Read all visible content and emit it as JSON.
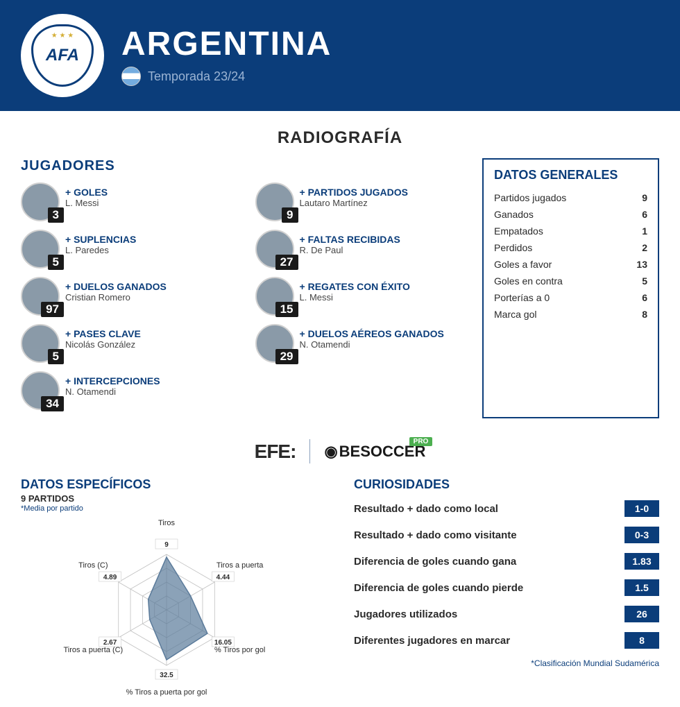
{
  "header": {
    "team_name": "ARGENTINA",
    "crest_text": "AFA",
    "season": "Temporada 23/24"
  },
  "radiografia_title": "RADIOGRAFÍA",
  "jugadores_title": "JUGADORES",
  "players_left": [
    {
      "stat": "GOLES",
      "name": "L. Messi",
      "value": "3"
    },
    {
      "stat": "SUPLENCIAS",
      "name": "L. Paredes",
      "value": "5"
    },
    {
      "stat": "DUELOS GANADOS",
      "name": "Cristian Romero",
      "value": "97"
    },
    {
      "stat": "PASES CLAVE",
      "name": "Nicolás González",
      "value": "5"
    },
    {
      "stat": "INTERCEPCIONES",
      "name": "N. Otamendi",
      "value": "34"
    }
  ],
  "players_right": [
    {
      "stat": "PARTIDOS JUGADOS",
      "name": "Lautaro Martínez",
      "value": "9"
    },
    {
      "stat": "FALTAS RECIBIDAS",
      "name": "R. De Paul",
      "value": "27"
    },
    {
      "stat": "REGATES CON ÉXITO",
      "name": "L. Messi",
      "value": "15"
    },
    {
      "stat": "DUELOS AÉREOS GANADOS",
      "name": "N. Otamendi",
      "value": "29"
    }
  ],
  "datos_generales": {
    "title": "DATOS GENERALES",
    "rows": [
      {
        "label": "Partidos jugados",
        "value": "9"
      },
      {
        "label": "Ganados",
        "value": "6"
      },
      {
        "label": "Empatados",
        "value": "1"
      },
      {
        "label": "Perdidos",
        "value": "2"
      },
      {
        "label": "Goles a favor",
        "value": "13"
      },
      {
        "label": "Goles en contra",
        "value": "5"
      },
      {
        "label": "Porterías a 0",
        "value": "6"
      },
      {
        "label": "Marca gol",
        "value": "8"
      }
    ]
  },
  "brands": {
    "efe": "EFE:",
    "besoccer": "BESOCCER",
    "pro": "PRO"
  },
  "datos_especificos": {
    "title": "DATOS ESPECÍFICOS",
    "subtitle": "9 PARTIDOS",
    "note": "*Media por partido",
    "radar": {
      "axes": [
        {
          "label": "Tiros",
          "value": "9",
          "r": 0.95
        },
        {
          "label": "Tiros a puerta",
          "value": "4.44",
          "r": 0.5
        },
        {
          "label": "% Tiros por gol",
          "value": "16.05",
          "r": 0.85
        },
        {
          "label": "% Tiros a puerta por gol",
          "value": "32.5",
          "r": 0.9
        },
        {
          "label": "Tiros a puerta (C)",
          "value": "2.67",
          "r": 0.35
        },
        {
          "label": "Tiros (C)",
          "value": "4.89",
          "r": 0.38
        }
      ],
      "fill_color": "#5a7a9a",
      "fill_opacity": 0.7,
      "grid_color": "#c0c0c0",
      "rings": 4
    }
  },
  "curiosidades": {
    "title": "CURIOSIDADES",
    "rows": [
      {
        "label": "Resultado + dado como local",
        "value": "1-0"
      },
      {
        "label": "Resultado + dado como visitante",
        "value": "0-3"
      },
      {
        "label": "Diferencia de goles cuando gana",
        "value": "1.83"
      },
      {
        "label": "Diferencia de goles cuando pierde",
        "value": "1.5"
      },
      {
        "label": "Jugadores utilizados",
        "value": "26"
      },
      {
        "label": "Diferentes jugadores en marcar",
        "value": "8"
      }
    ]
  },
  "footnote": "*Clasificación Mundial Sudamérica"
}
